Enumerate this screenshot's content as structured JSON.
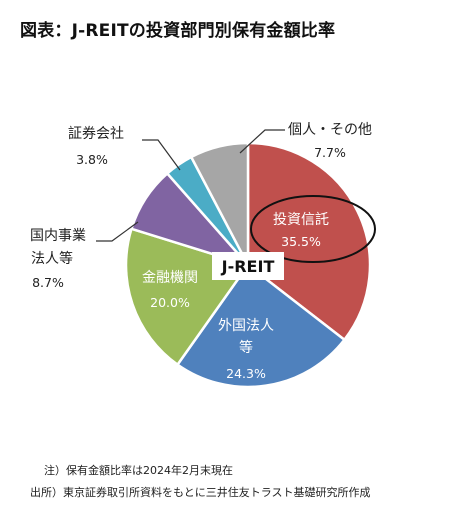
{
  "title": "図表：J-REITの投資部門別保有金額比率",
  "chart_data": {
    "type": "pie",
    "center_label": "J-REIT",
    "slices": [
      {
        "name": "投資信託",
        "value": 35.5,
        "value_text": "35.5%",
        "color": "#c0504d",
        "highlighted": true
      },
      {
        "name": "外国法人等",
        "value": 24.3,
        "value_text": "24.3%",
        "color": "#4f81bd"
      },
      {
        "name": "金融機関",
        "value": 20.0,
        "value_text": "20.0%",
        "color": "#9bbb59"
      },
      {
        "name": "国内事業法人等",
        "value": 8.7,
        "value_text": "8.7%",
        "color": "#8064a2"
      },
      {
        "name": "証券会社",
        "value": 3.8,
        "value_text": "3.8%",
        "color": "#4bacc6"
      },
      {
        "name": "個人・その他",
        "value": 7.7,
        "value_text": "7.7%",
        "color": "#a6a6a6"
      }
    ],
    "start_angle_deg": 0,
    "direction": "clockwise"
  },
  "notes": {
    "note1": "注）保有金額比率は2024年2月末現在",
    "note2": "出所）東京証券取引所資料をもとに三井住友トラスト基礎研究所作成"
  }
}
